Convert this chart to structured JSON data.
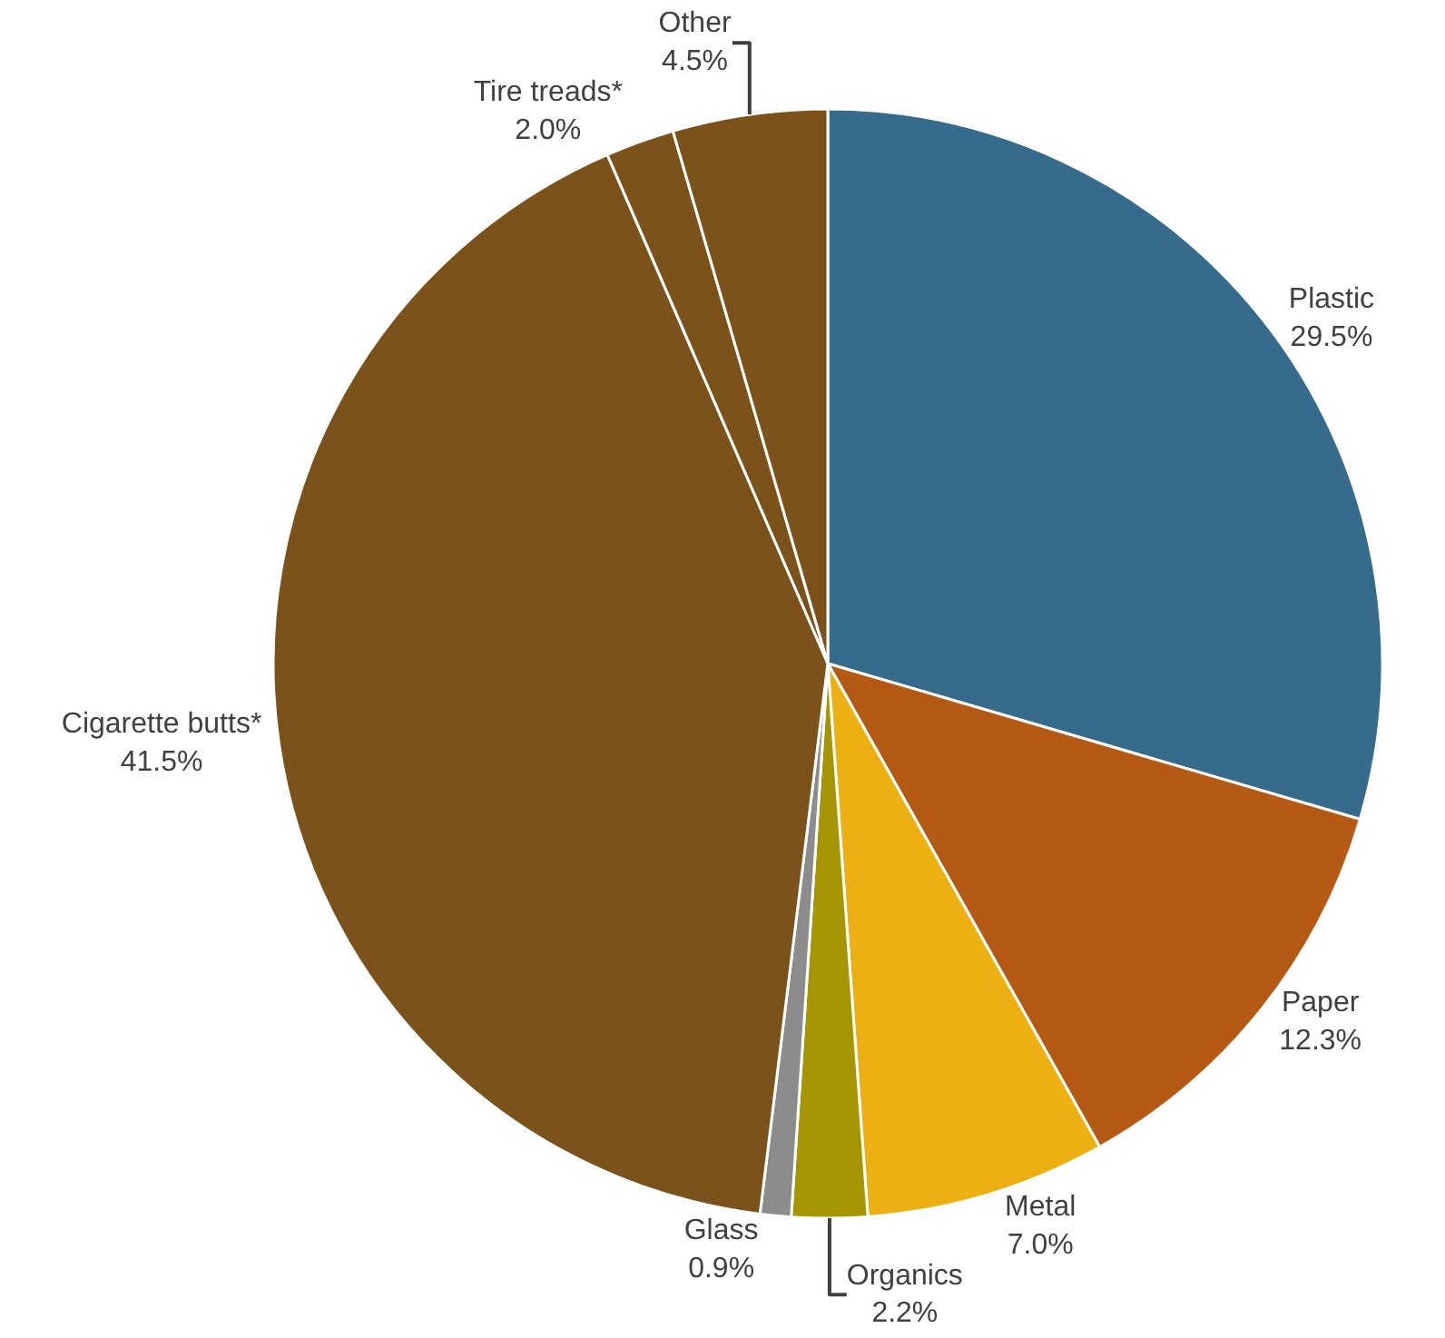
{
  "chart_data": {
    "type": "pie",
    "categories": [
      "Plastic",
      "Paper",
      "Metal",
      "Organics",
      "Glass",
      "Cigarette butts*",
      "Tire treads*",
      "Other"
    ],
    "values": [
      29.5,
      12.3,
      7.0,
      2.2,
      0.9,
      41.5,
      2.0,
      4.5
    ],
    "value_labels": [
      "29.5%",
      "12.3%",
      "7.0%",
      "2.2%",
      "0.9%",
      "41.5%",
      "2.0%",
      "4.5%"
    ],
    "colors": [
      "#376b8c",
      "#b55a15",
      "#ecb012",
      "#a59500",
      "#8c8c8c",
      "#7b5219",
      "#7b5219",
      "#7b5219"
    ]
  }
}
